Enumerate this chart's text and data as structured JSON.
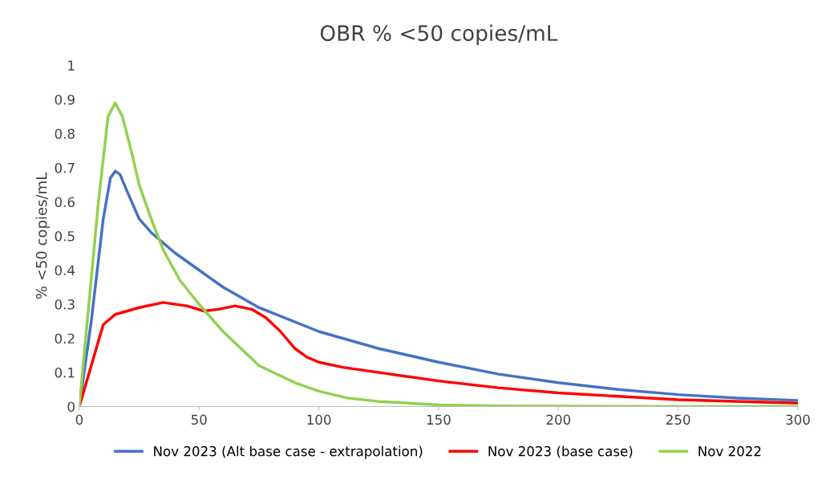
{
  "chart_data": {
    "type": "line",
    "title": "OBR % <50 copies/mL",
    "ylabel": "% <50 copies/mL",
    "xlim": [
      0,
      300
    ],
    "ylim": [
      0,
      1
    ],
    "xticks": [
      0,
      50,
      100,
      150,
      200,
      250,
      300
    ],
    "yticks": [
      0,
      0.1,
      0.2,
      0.3,
      0.4,
      0.5,
      0.6,
      0.7,
      0.8,
      0.9,
      1
    ],
    "grid": false,
    "legend": "bottom",
    "marker": "none",
    "line_style": "solid",
    "series": [
      {
        "name": "Nov 2023 (Alt base case - extrapolation)",
        "color": "#4472c4",
        "x": [
          0,
          5,
          10,
          13,
          15,
          17,
          20,
          25,
          30,
          40,
          50,
          60,
          75,
          100,
          125,
          150,
          175,
          200,
          225,
          250,
          275,
          300
        ],
        "values": [
          0,
          0.25,
          0.55,
          0.67,
          0.69,
          0.68,
          0.63,
          0.55,
          0.51,
          0.45,
          0.4,
          0.35,
          0.29,
          0.22,
          0.17,
          0.13,
          0.095,
          0.07,
          0.05,
          0.035,
          0.025,
          0.018
        ]
      },
      {
        "name": "Nov 2023 (base case)",
        "color": "#ff0000",
        "x": [
          0,
          5,
          10,
          15,
          20,
          25,
          35,
          45,
          52,
          58,
          65,
          72,
          78,
          84,
          90,
          95,
          100,
          110,
          120,
          150,
          175,
          200,
          250,
          300
        ],
        "values": [
          0,
          0.12,
          0.24,
          0.27,
          0.28,
          0.29,
          0.305,
          0.295,
          0.28,
          0.285,
          0.295,
          0.285,
          0.26,
          0.22,
          0.17,
          0.145,
          0.13,
          0.115,
          0.105,
          0.075,
          0.055,
          0.04,
          0.02,
          0.01
        ]
      },
      {
        "name": "Nov 2022",
        "color": "#92d050",
        "x": [
          0,
          4,
          8,
          12,
          15,
          18,
          22,
          25,
          30,
          35,
          42,
          50,
          60,
          75,
          90,
          100,
          112,
          125,
          150,
          175,
          200,
          250,
          300
        ],
        "values": [
          0,
          0.3,
          0.6,
          0.85,
          0.89,
          0.85,
          0.74,
          0.65,
          0.55,
          0.46,
          0.37,
          0.3,
          0.22,
          0.12,
          0.07,
          0.045,
          0.025,
          0.015,
          0.005,
          0.002,
          0.001,
          0,
          0
        ]
      }
    ]
  }
}
